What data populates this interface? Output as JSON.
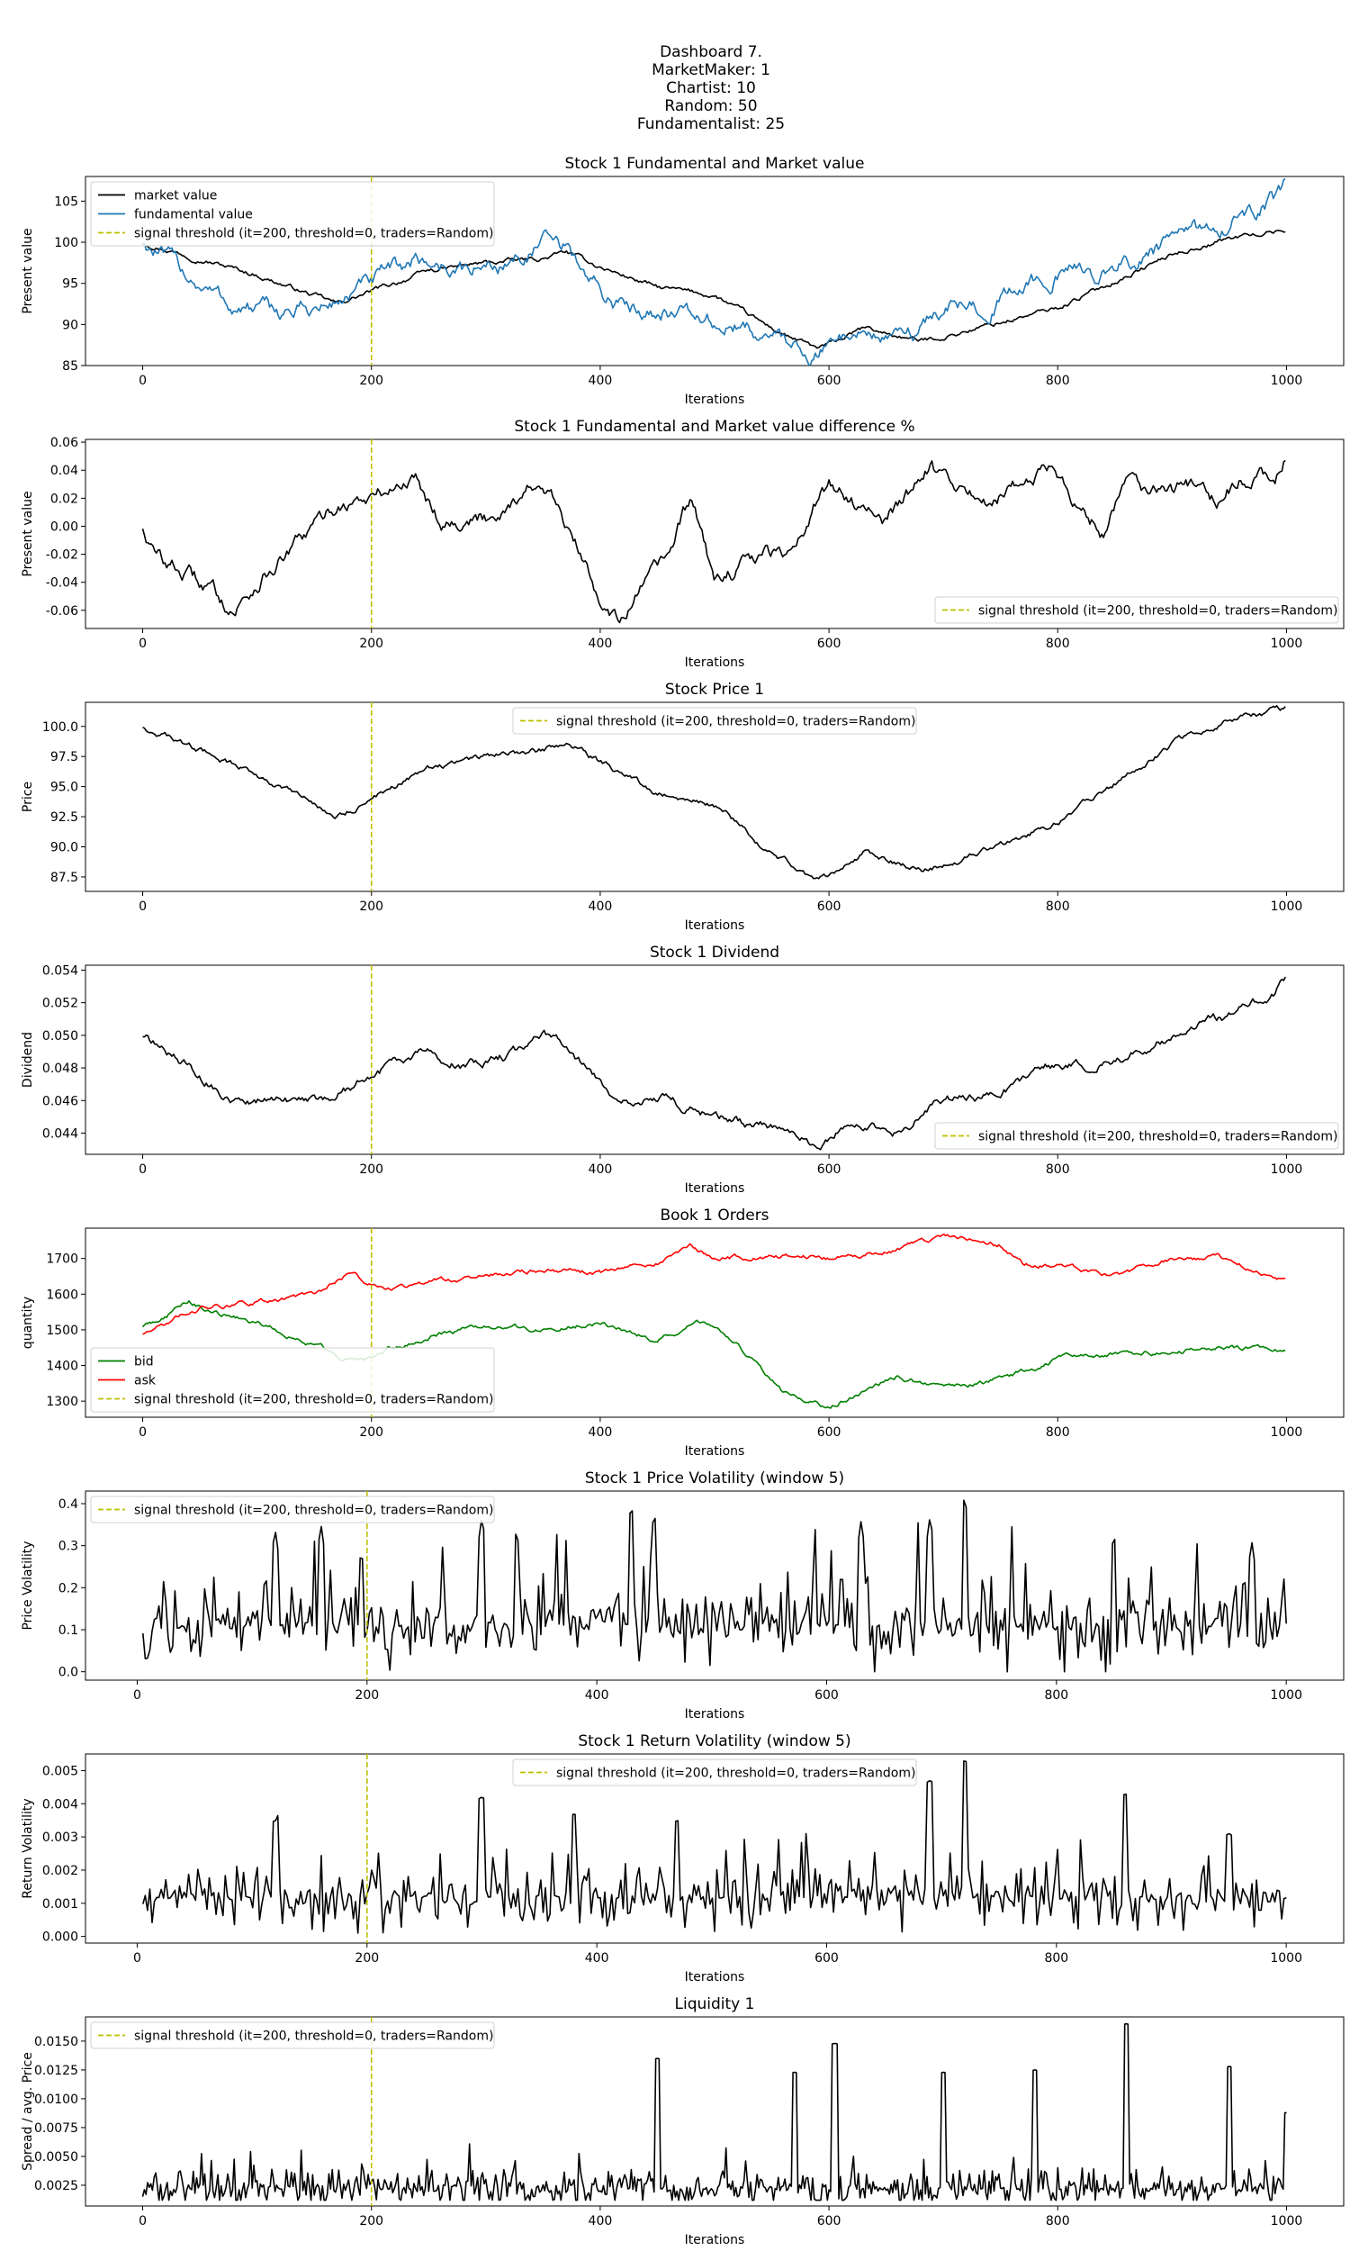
{
  "suptitle": [
    "Dashboard 7.",
    "MarketMaker: 1",
    "Chartist: 10",
    "Random: 50",
    "Fundamentalist: 25"
  ],
  "colors": {
    "market": "#000000",
    "fundamental": "#1f77b4",
    "bid": "#008000",
    "ask": "#ff0000",
    "signal": "#bfbf00"
  },
  "chart_data": [
    {
      "type": "line",
      "title": "Stock 1 Fundamental and Market value",
      "xlabel": "Iterations",
      "ylabel": "Present value",
      "xlim": [
        -50,
        1050
      ],
      "ylim": [
        85,
        108
      ],
      "xticks": [
        0,
        200,
        400,
        600,
        800,
        1000
      ],
      "yticks": [
        85,
        90,
        95,
        100,
        105
      ],
      "legend": "top-left",
      "signal_x": 200,
      "signal_label": "signal threshold (it=200, threshold=0, traders=Random)",
      "series": [
        {
          "name": "market value",
          "color": "#000000",
          "noise": 0.25,
          "x": [
            0,
            50,
            100,
            150,
            170,
            200,
            250,
            300,
            350,
            370,
            400,
            450,
            500,
            550,
            590,
            600,
            630,
            680,
            700,
            800,
            900,
            950,
            1000
          ],
          "y": [
            100,
            98,
            96,
            93.5,
            92.5,
            94,
            96.5,
            97.5,
            98,
            98.8,
            97,
            94.5,
            93.5,
            89.5,
            87,
            87.5,
            89.5,
            88,
            88.5,
            92,
            98.5,
            100.5,
            101.5
          ]
        },
        {
          "name": "fundamental value",
          "color": "#1f77b4",
          "noise": 0.9,
          "x": [
            0,
            40,
            80,
            120,
            160,
            200,
            240,
            280,
            320,
            350,
            370,
            400,
            420,
            460,
            500,
            540,
            590,
            620,
            660,
            700,
            740,
            790,
            850,
            900,
            950,
            990,
            1000
          ],
          "y": [
            100,
            96,
            92,
            91.5,
            92,
            95,
            98,
            96.5,
            97.5,
            100,
            99,
            94,
            92,
            92,
            90,
            89,
            86.5,
            89.5,
            88,
            92,
            92.5,
            96,
            96.5,
            100,
            102.5,
            105,
            107
          ]
        }
      ]
    },
    {
      "type": "line",
      "title": "Stock 1 Fundamental and Market value difference %",
      "xlabel": "Iterations",
      "ylabel": "Present value",
      "xlim": [
        -50,
        1050
      ],
      "ylim": [
        -0.073,
        0.062
      ],
      "xticks": [
        0,
        200,
        400,
        600,
        800,
        1000
      ],
      "yticks": [
        -0.06,
        -0.04,
        -0.02,
        0.0,
        0.02,
        0.04,
        0.06
      ],
      "yformat": 2,
      "legend": "bottom-right",
      "signal_x": 200,
      "signal_label": "signal threshold (it=200, threshold=0, traders=Random)",
      "series": [
        {
          "name": "",
          "color": "#000000",
          "noise": 0.005,
          "x": [
            0,
            10,
            30,
            60,
            80,
            100,
            140,
            170,
            200,
            240,
            260,
            300,
            340,
            360,
            400,
            420,
            460,
            480,
            500,
            540,
            560,
            600,
            620,
            650,
            690,
            710,
            740,
            770,
            790,
            810,
            840,
            860,
            880,
            920,
            940,
            960,
            990,
            1000
          ],
          "y": [
            0,
            -0.02,
            -0.03,
            -0.045,
            -0.06,
            -0.04,
            -0.01,
            0.015,
            0.02,
            0.035,
            0.005,
            0.005,
            0.03,
            0.015,
            -0.05,
            -0.065,
            -0.02,
            0.02,
            -0.04,
            -0.02,
            -0.02,
            0.03,
            0.02,
            0.005,
            0.045,
            0.02,
            0.02,
            0.03,
            0.045,
            0.025,
            -0.005,
            0.04,
            0.025,
            0.03,
            0.015,
            0.035,
            0.035,
            0.055
          ]
        }
      ]
    },
    {
      "type": "line",
      "title": "Stock Price 1",
      "xlabel": "Iterations",
      "ylabel": "Price",
      "xlim": [
        -50,
        1050
      ],
      "ylim": [
        86.3,
        102
      ],
      "xticks": [
        0,
        200,
        400,
        600,
        800,
        1000
      ],
      "yticks": [
        87.5,
        90.0,
        92.5,
        95.0,
        97.5,
        100.0
      ],
      "yformat": 1,
      "legend": "top-center",
      "signal_x": 200,
      "signal_label": "signal threshold (it=200, threshold=0, traders=Random)",
      "series": [
        {
          "name": "",
          "color": "#000000",
          "noise": 0.22,
          "x": [
            0,
            50,
            100,
            150,
            170,
            200,
            250,
            300,
            350,
            370,
            400,
            450,
            500,
            550,
            590,
            600,
            630,
            680,
            700,
            800,
            900,
            950,
            1000
          ],
          "y": [
            100,
            98,
            96,
            93.5,
            92.5,
            94,
            96.5,
            97.5,
            98,
            98.8,
            97,
            94.5,
            93.5,
            89.5,
            87.2,
            87.5,
            89.5,
            88,
            88.5,
            92,
            98.5,
            100.5,
            101.5
          ]
        }
      ]
    },
    {
      "type": "line",
      "title": "Stock 1 Dividend",
      "xlabel": "Iterations",
      "ylabel": "Dividend",
      "xlim": [
        -50,
        1050
      ],
      "ylim": [
        0.0427,
        0.0543
      ],
      "xticks": [
        0,
        200,
        400,
        600,
        800,
        1000
      ],
      "yticks": [
        0.044,
        0.046,
        0.048,
        0.05,
        0.052,
        0.054
      ],
      "yformat": 3,
      "legend": "bottom-right",
      "signal_x": 200,
      "signal_label": "signal threshold (it=200, threshold=0, traders=Random)",
      "series": [
        {
          "name": "",
          "color": "#000000",
          "noise": 0.00025,
          "x": [
            0,
            40,
            80,
            120,
            160,
            200,
            240,
            280,
            320,
            350,
            370,
            400,
            420,
            460,
            500,
            540,
            590,
            620,
            660,
            700,
            740,
            790,
            850,
            900,
            950,
            990,
            1000
          ],
          "y": [
            0.05,
            0.048,
            0.046,
            0.0459,
            0.046,
            0.0475,
            0.049,
            0.04825,
            0.04875,
            0.05,
            0.0495,
            0.047,
            0.046,
            0.046,
            0.045,
            0.0445,
            0.04325,
            0.04475,
            0.044,
            0.046,
            0.04625,
            0.048,
            0.04825,
            0.05,
            0.05125,
            0.0525,
            0.0535
          ]
        }
      ]
    },
    {
      "type": "line",
      "title": "Book 1 Orders",
      "xlabel": "Iterations",
      "ylabel": "quantity",
      "xlim": [
        -50,
        1050
      ],
      "ylim": [
        1255,
        1785
      ],
      "xticks": [
        0,
        200,
        400,
        600,
        800,
        1000
      ],
      "yticks": [
        1300,
        1400,
        1500,
        1600,
        1700
      ],
      "legend": "bottom-left",
      "signal_x": 200,
      "signal_label": "signal threshold (it=200, threshold=0, traders=Random)",
      "series": [
        {
          "name": "bid",
          "color": "#008000",
          "noise": 6,
          "x": [
            0,
            20,
            40,
            60,
            100,
            140,
            180,
            200,
            220,
            260,
            300,
            350,
            400,
            450,
            490,
            520,
            560,
            600,
            620,
            660,
            700,
            760,
            800,
            850,
            900,
            950,
            1000
          ],
          "y": [
            1510,
            1540,
            1580,
            1550,
            1520,
            1470,
            1420,
            1420,
            1450,
            1490,
            1510,
            1500,
            1520,
            1470,
            1520,
            1460,
            1320,
            1280,
            1310,
            1370,
            1330,
            1370,
            1420,
            1430,
            1440,
            1450,
            1440
          ]
        },
        {
          "name": "ask",
          "color": "#ff0000",
          "noise": 6,
          "x": [
            0,
            50,
            100,
            150,
            180,
            210,
            250,
            300,
            350,
            400,
            450,
            480,
            500,
            550,
            600,
            650,
            700,
            750,
            770,
            800,
            850,
            900,
            950,
            990,
            1000
          ],
          "y": [
            1490,
            1560,
            1580,
            1600,
            1660,
            1610,
            1630,
            1650,
            1670,
            1660,
            1690,
            1730,
            1700,
            1710,
            1700,
            1720,
            1760,
            1740,
            1680,
            1680,
            1650,
            1700,
            1700,
            1640,
            1640
          ]
        }
      ]
    },
    {
      "type": "line",
      "title": "Stock 1 Price Volatility (window 5)",
      "xlabel": "Iterations",
      "ylabel": "Price Volatility",
      "xlim": [
        -45,
        1050
      ],
      "ylim": [
        -0.02,
        0.43
      ],
      "xticks": [
        0,
        200,
        400,
        600,
        800,
        1000
      ],
      "yticks": [
        0.0,
        0.1,
        0.2,
        0.3,
        0.4
      ],
      "yformat": 1,
      "legend": "top-left",
      "signal_x": 200,
      "signal_label": "signal threshold (it=200, threshold=0, traders=Random)",
      "series": [
        {
          "name": "",
          "color": "#000000",
          "noise": 0,
          "spiky": true,
          "seed": 11,
          "base": 0.11,
          "amp": 0.13,
          "floor": 0.0,
          "ceil": 0.42,
          "x_from": 5,
          "x_to": 1000,
          "points": 500,
          "peaks": [
            [
              120,
              0.34
            ],
            [
              160,
              0.35
            ],
            [
              195,
              0.29
            ],
            [
              300,
              0.37
            ],
            [
              330,
              0.34
            ],
            [
              430,
              0.4
            ],
            [
              450,
              0.38
            ],
            [
              630,
              0.36
            ],
            [
              690,
              0.37
            ],
            [
              720,
              0.42
            ],
            [
              850,
              0.33
            ],
            [
              970,
              0.31
            ]
          ]
        }
      ]
    },
    {
      "type": "line",
      "title": "Stock 1 Return Volatility (window 5)",
      "xlabel": "Iterations",
      "ylabel": "Return Volatility",
      "xlim": [
        -45,
        1050
      ],
      "ylim": [
        -0.0002,
        0.0055
      ],
      "xticks": [
        0,
        200,
        400,
        600,
        800,
        1000
      ],
      "yticks": [
        0.0,
        0.001,
        0.002,
        0.003,
        0.004,
        0.005
      ],
      "yformat": 3,
      "legend": "top-center",
      "signal_x": 200,
      "signal_label": "signal threshold (it=200, threshold=0, traders=Random)",
      "series": [
        {
          "name": "",
          "color": "#000000",
          "noise": 0,
          "spiky": true,
          "seed": 23,
          "base": 0.0012,
          "amp": 0.0012,
          "floor": 0.0,
          "ceil": 0.0053,
          "x_from": 5,
          "x_to": 1000,
          "points": 500,
          "peaks": [
            [
              120,
              0.0035
            ],
            [
              300,
              0.0042
            ],
            [
              380,
              0.0037
            ],
            [
              470,
              0.0035
            ],
            [
              690,
              0.0047
            ],
            [
              720,
              0.0053
            ],
            [
              860,
              0.0043
            ],
            [
              950,
              0.0031
            ]
          ]
        }
      ]
    },
    {
      "type": "line",
      "title": "Liquidity 1",
      "xlabel": "Iterations",
      "ylabel": "Spread / avg. Price",
      "xlim": [
        -50,
        1050
      ],
      "ylim": [
        0.0007,
        0.0171
      ],
      "xticks": [
        0,
        200,
        400,
        600,
        800,
        1000
      ],
      "yticks": [
        0.0025,
        0.005,
        0.0075,
        0.01,
        0.0125,
        0.015
      ],
      "yformat": 4,
      "legend": "top-left",
      "signal_x": 200,
      "signal_label": "signal threshold (it=200, threshold=0, traders=Random)",
      "series": [
        {
          "name": "",
          "color": "#000000",
          "noise": 0,
          "spiky": true,
          "seed": 37,
          "base": 0.0022,
          "amp": 0.0022,
          "floor": 0.0012,
          "ceil": 0.0165,
          "x_from": 0,
          "x_to": 1000,
          "points": 700,
          "peaks": [
            [
              450,
              0.0135
            ],
            [
              570,
              0.0123
            ],
            [
              605,
              0.0148
            ],
            [
              700,
              0.0123
            ],
            [
              780,
              0.0125
            ],
            [
              860,
              0.0165
            ],
            [
              950,
              0.0128
            ],
            [
              1000,
              0.0088
            ]
          ]
        }
      ]
    }
  ]
}
